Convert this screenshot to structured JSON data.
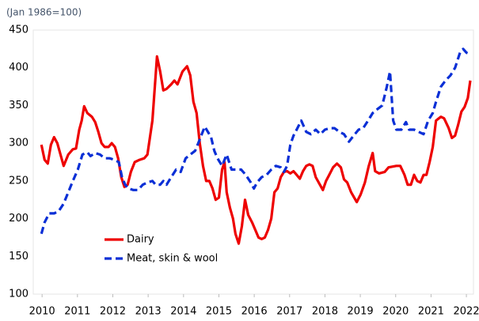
{
  "chart_data": {
    "type": "line",
    "subtitle": "(Jan 1986=100)",
    "xlim": [
      2009.75,
      2022.2
    ],
    "xticks": [
      2010,
      2011,
      2012,
      2013,
      2014,
      2015,
      2016,
      2017,
      2018,
      2019,
      2020,
      2021,
      2022
    ],
    "ylim": [
      100,
      450
    ],
    "yticks": [
      100,
      150,
      200,
      250,
      300,
      350,
      400,
      450
    ],
    "grid": false,
    "legend": "lower left",
    "series": [
      {
        "name": "Dairy",
        "color": "#ee0000",
        "line_style": "solid",
        "x": [
          2009.98,
          2010.07,
          2010.16,
          2010.25,
          2010.34,
          2010.43,
          2010.52,
          2010.61,
          2010.74,
          2010.87,
          2010.96,
          2011.05,
          2011.12,
          2011.19,
          2011.28,
          2011.41,
          2011.5,
          2011.59,
          2011.68,
          2011.77,
          2011.88,
          2011.97,
          2012.06,
          2012.15,
          2012.24,
          2012.33,
          2012.42,
          2012.51,
          2012.62,
          2012.76,
          2012.89,
          2012.98,
          2013.12,
          2013.25,
          2013.34,
          2013.43,
          2013.52,
          2013.65,
          2013.74,
          2013.83,
          2013.97,
          2014.1,
          2014.19,
          2014.28,
          2014.37,
          2014.46,
          2014.55,
          2014.64,
          2014.73,
          2014.82,
          2014.91,
          2015.0,
          2015.09,
          2015.16,
          2015.22,
          2015.31,
          2015.4,
          2015.47,
          2015.56,
          2015.65,
          2015.74,
          2015.83,
          2015.94,
          2016.03,
          2016.12,
          2016.21,
          2016.3,
          2016.39,
          2016.48,
          2016.57,
          2016.66,
          2016.75,
          2016.84,
          2016.93,
          2017.02,
          2017.11,
          2017.2,
          2017.29,
          2017.38,
          2017.47,
          2017.56,
          2017.65,
          2017.74,
          2017.94,
          2018.03,
          2018.12,
          2018.23,
          2018.34,
          2018.45,
          2018.54,
          2018.63,
          2018.74,
          2018.9,
          2019.01,
          2019.13,
          2019.24,
          2019.35,
          2019.42,
          2019.53,
          2019.69,
          2019.8,
          2020.02,
          2020.13,
          2020.25,
          2020.34,
          2020.43,
          2020.52,
          2020.61,
          2020.7,
          2020.79,
          2020.87,
          2020.96,
          2021.05,
          2021.14,
          2021.28,
          2021.37,
          2021.5,
          2021.59,
          2021.68,
          2021.77,
          2021.86,
          2021.95,
          2022.04,
          2022.11
        ],
        "values": [
          298,
          278,
          273,
          298,
          308,
          300,
          285,
          270,
          285,
          292,
          293,
          318,
          330,
          349,
          340,
          335,
          328,
          315,
          300,
          295,
          295,
          300,
          295,
          280,
          255,
          242,
          245,
          262,
          275,
          278,
          280,
          285,
          330,
          415,
          395,
          370,
          372,
          378,
          383,
          378,
          395,
          402,
          390,
          355,
          340,
          300,
          270,
          250,
          250,
          240,
          225,
          228,
          265,
          275,
          235,
          215,
          200,
          180,
          167,
          190,
          225,
          205,
          195,
          185,
          175,
          173,
          175,
          185,
          200,
          235,
          240,
          255,
          262,
          263,
          260,
          263,
          258,
          253,
          263,
          270,
          272,
          270,
          255,
          238,
          250,
          258,
          268,
          273,
          268,
          252,
          248,
          235,
          222,
          232,
          248,
          270,
          287,
          263,
          260,
          262,
          268,
          270,
          270,
          258,
          245,
          245,
          258,
          250,
          248,
          258,
          258,
          275,
          295,
          330,
          335,
          333,
          320,
          307,
          310,
          325,
          342,
          348,
          360,
          383
        ]
      },
      {
        "name": "Meat, skin & wool",
        "color": "#0a2fd6",
        "line_style": "dashed",
        "x": [
          2009.98,
          2010.07,
          2010.2,
          2010.34,
          2010.47,
          2010.61,
          2010.74,
          2010.87,
          2011.01,
          2011.14,
          2011.28,
          2011.37,
          2011.5,
          2011.64,
          2011.77,
          2011.91,
          2012.04,
          2012.17,
          2012.26,
          2012.35,
          2012.44,
          2012.58,
          2012.71,
          2012.85,
          2012.98,
          2013.12,
          2013.21,
          2013.34,
          2013.43,
          2013.52,
          2013.65,
          2013.79,
          2013.92,
          2014.06,
          2014.19,
          2014.33,
          2014.46,
          2014.6,
          2014.69,
          2014.78,
          2014.87,
          2014.96,
          2015.09,
          2015.22,
          2015.36,
          2015.49,
          2015.63,
          2015.76,
          2015.9,
          2015.99,
          2016.08,
          2016.21,
          2016.35,
          2016.48,
          2016.61,
          2016.75,
          2016.84,
          2016.93,
          2017.02,
          2017.11,
          2017.2,
          2017.33,
          2017.47,
          2017.6,
          2017.74,
          2017.87,
          2018.0,
          2018.14,
          2018.27,
          2018.41,
          2018.54,
          2018.68,
          2018.81,
          2018.95,
          2019.08,
          2019.22,
          2019.35,
          2019.48,
          2019.62,
          2019.75,
          2019.84,
          2019.93,
          2020.02,
          2020.16,
          2020.29,
          2020.38,
          2020.52,
          2020.65,
          2020.79,
          2020.92,
          2021.05,
          2021.14,
          2021.28,
          2021.41,
          2021.55,
          2021.68,
          2021.82,
          2021.91,
          2022.0,
          2022.09
        ],
        "values": [
          180,
          195,
          207,
          207,
          210,
          220,
          235,
          250,
          265,
          285,
          288,
          283,
          287,
          285,
          280,
          280,
          278,
          275,
          255,
          245,
          240,
          238,
          238,
          245,
          248,
          250,
          245,
          245,
          250,
          245,
          255,
          265,
          262,
          280,
          285,
          290,
          305,
          322,
          315,
          308,
          290,
          280,
          270,
          285,
          265,
          265,
          265,
          258,
          248,
          240,
          248,
          255,
          258,
          265,
          270,
          268,
          262,
          270,
          298,
          310,
          318,
          330,
          315,
          312,
          318,
          312,
          318,
          320,
          320,
          315,
          312,
          302,
          310,
          318,
          320,
          330,
          340,
          345,
          350,
          375,
          395,
          330,
          318,
          318,
          328,
          318,
          318,
          315,
          312,
          330,
          340,
          355,
          375,
          383,
          390,
          400,
          420,
          425,
          420,
          418
        ]
      }
    ]
  }
}
